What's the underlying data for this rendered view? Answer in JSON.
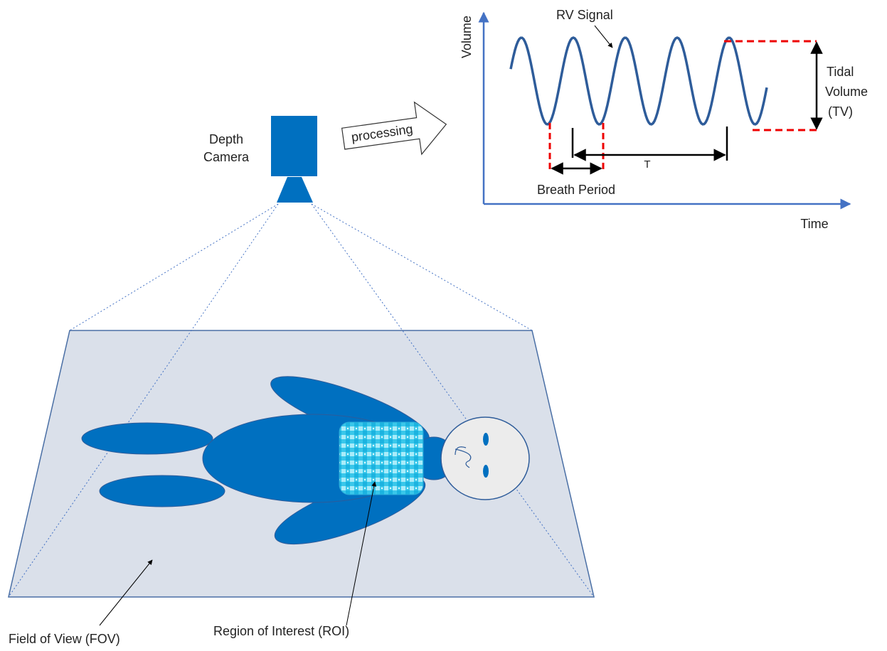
{
  "camera": {
    "label": [
      "Depth",
      "Camera"
    ]
  },
  "process": {
    "label": "processing"
  },
  "plot": {
    "y_axis": "Volume",
    "x_axis": "Time",
    "signal": "RV Signal",
    "tidal_volume": [
      "Tidal",
      "Volume",
      "(TV)"
    ],
    "period_span": "T",
    "breath_period": "Breath Period"
  },
  "scene": {
    "fov": "Field of View (FOV)",
    "roi": "Region of Interest (ROI)"
  }
}
